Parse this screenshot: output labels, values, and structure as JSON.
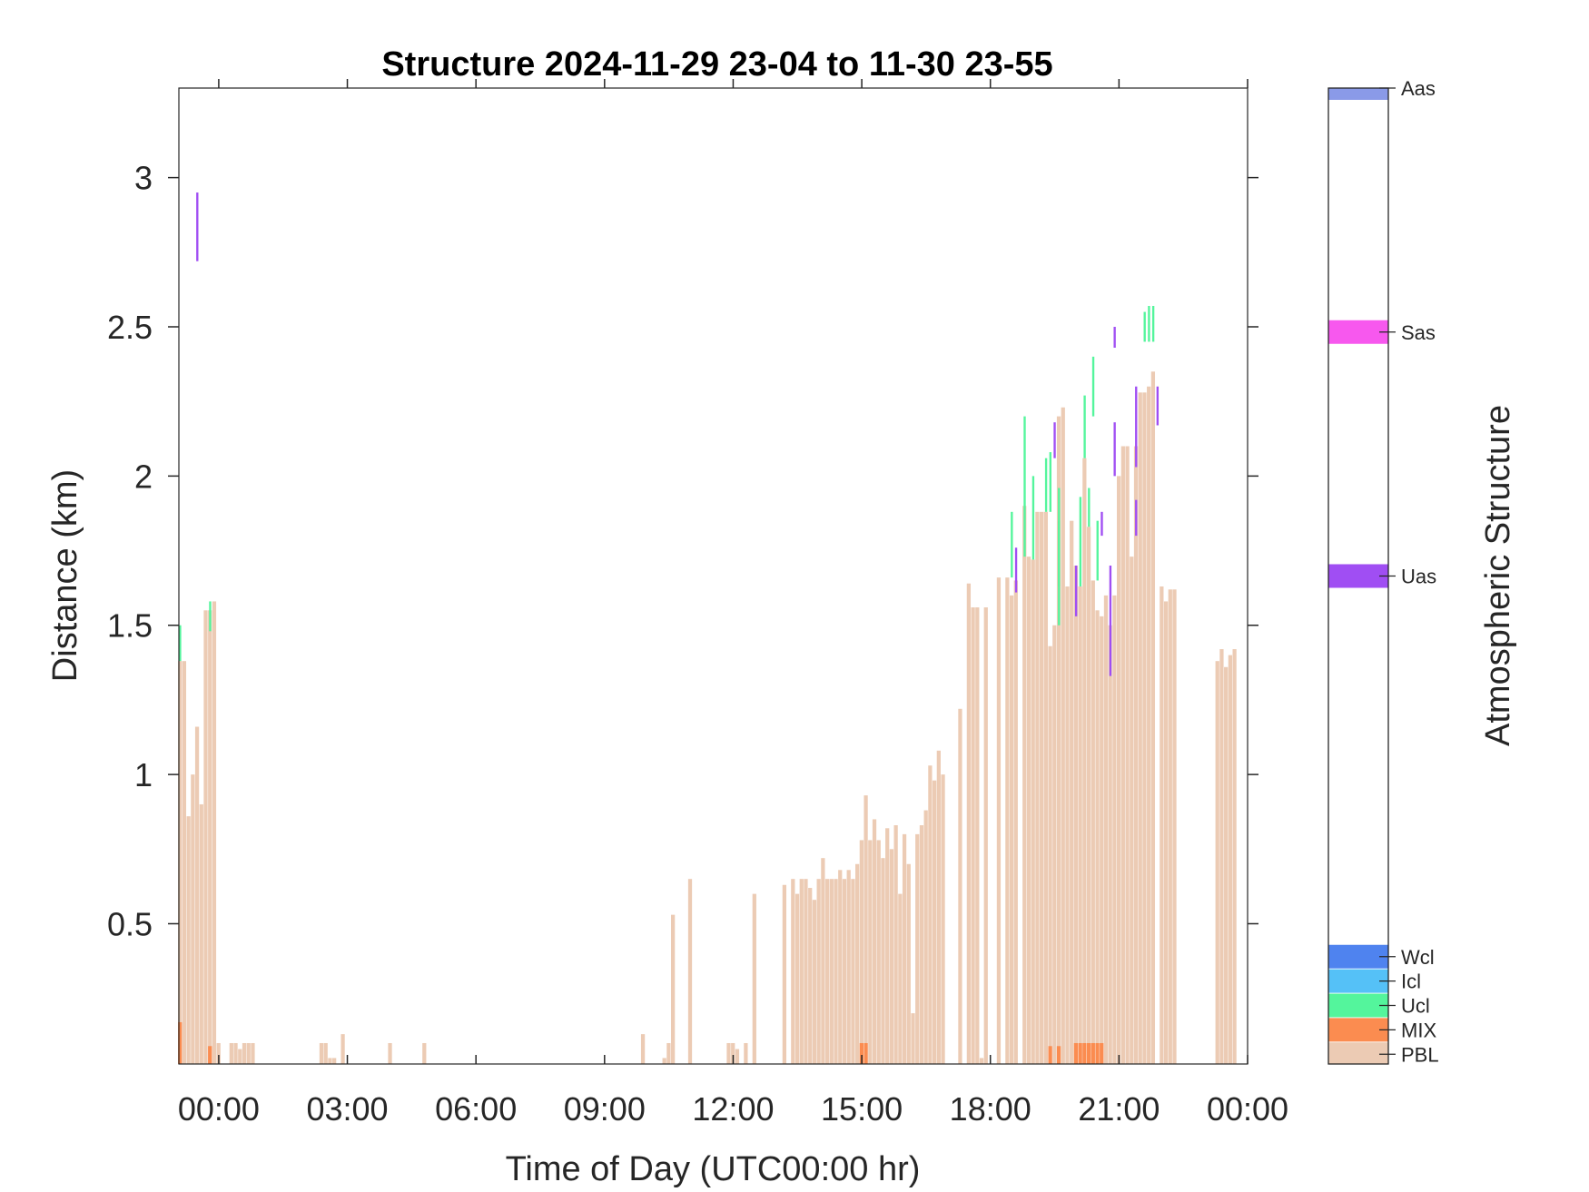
{
  "chart_data": {
    "type": "bar",
    "title": "Structure 2024-11-29 23-04 to 11-30 23-55",
    "xlabel": "Time of Day (UTC00:00 hr)",
    "ylabel": "Distance (km)",
    "colorbar_label": "Atmospheric Structure",
    "x_unit": "hours relative to 2024-11-30 00:00 UTC",
    "xlim": [
      -0.93,
      24.0
    ],
    "ylim": [
      0.03,
      3.3
    ],
    "x_ticks": [
      0,
      3,
      6,
      9,
      12,
      15,
      18,
      21,
      24
    ],
    "x_tick_labels": [
      "00:00",
      "03:00",
      "06:00",
      "09:00",
      "12:00",
      "15:00",
      "18:00",
      "21:00",
      "00:00"
    ],
    "y_ticks": [
      0.5,
      1,
      1.5,
      2,
      2.5,
      3
    ],
    "y_tick_labels": [
      "0.5",
      "1",
      "1.5",
      "2",
      "2.5",
      "3"
    ],
    "bar_width_hours": 0.1,
    "colors": {
      "PBL": "#eccbb4",
      "MIX": "#fb8c50",
      "Ucl": "#54f59c",
      "Icl": "#55c1f7",
      "Wcl": "#4f83ef",
      "Uas": "#a04ef3",
      "Sas": "#f758ee",
      "Aas": "#8a9ae8"
    },
    "legend": [
      {
        "name": "Aas",
        "color": "#8a9ae8"
      },
      {
        "name": "Sas",
        "color": "#f758ee"
      },
      {
        "name": "Uas",
        "color": "#a04ef3"
      },
      {
        "name": "Wcl",
        "color": "#4f83ef"
      },
      {
        "name": "Icl",
        "color": "#55c1f7"
      },
      {
        "name": "Ucl",
        "color": "#54f59c"
      },
      {
        "name": "MIX",
        "color": "#fb8c50"
      },
      {
        "name": "PBL",
        "color": "#eccbb4"
      }
    ],
    "series": [
      {
        "name": "PBL",
        "x": [
          -0.9,
          -0.8,
          -0.7,
          -0.6,
          -0.5,
          -0.4,
          -0.3,
          -0.2,
          -0.1,
          0.0,
          0.3,
          0.4,
          0.5,
          0.6,
          0.7,
          0.8,
          2.4,
          2.5,
          2.6,
          2.7,
          2.9,
          4.0,
          4.8,
          9.9,
          10.4,
          10.5,
          10.6,
          11.0,
          11.9,
          12.0,
          12.1,
          12.3,
          12.5,
          13.2,
          13.4,
          13.5,
          13.6,
          13.7,
          13.8,
          13.9,
          14.0,
          14.1,
          14.2,
          14.3,
          14.4,
          14.5,
          14.6,
          14.7,
          14.8,
          14.9,
          15.0,
          15.1,
          15.2,
          15.3,
          15.4,
          15.5,
          15.6,
          15.7,
          15.8,
          15.9,
          16.0,
          16.1,
          16.2,
          16.3,
          16.4,
          16.5,
          16.6,
          16.7,
          16.8,
          16.9,
          17.3,
          17.5,
          17.6,
          17.7,
          17.8,
          17.9,
          18.2,
          18.4,
          18.5,
          18.6,
          18.8,
          18.9,
          19.0,
          19.1,
          19.2,
          19.3,
          19.4,
          19.5,
          19.6,
          19.7,
          19.8,
          19.9,
          20.0,
          20.1,
          20.2,
          20.3,
          20.4,
          20.5,
          20.6,
          20.7,
          20.8,
          20.9,
          21.0,
          21.1,
          21.2,
          21.3,
          21.4,
          21.5,
          21.6,
          21.7,
          21.8,
          22.0,
          22.1,
          22.2,
          22.3,
          23.3,
          23.4,
          23.5,
          23.6,
          23.7
        ],
        "values": [
          1.38,
          1.38,
          0.86,
          1.0,
          1.16,
          0.9,
          1.55,
          1.55,
          1.58,
          0.1,
          0.1,
          0.1,
          0.08,
          0.1,
          0.1,
          0.1,
          0.1,
          0.1,
          0.05,
          0.05,
          0.13,
          0.1,
          0.1,
          0.13,
          0.05,
          0.1,
          0.53,
          0.65,
          0.1,
          0.1,
          0.08,
          0.1,
          0.6,
          0.63,
          0.65,
          0.6,
          0.65,
          0.65,
          0.62,
          0.58,
          0.65,
          0.72,
          0.65,
          0.65,
          0.65,
          0.68,
          0.65,
          0.68,
          0.65,
          0.7,
          0.78,
          0.93,
          0.78,
          0.85,
          0.78,
          0.72,
          0.82,
          0.75,
          0.83,
          0.6,
          0.8,
          0.7,
          0.2,
          0.8,
          0.83,
          0.88,
          1.03,
          0.98,
          1.08,
          1.0,
          1.22,
          1.64,
          1.56,
          1.56,
          0.05,
          1.56,
          1.66,
          1.66,
          1.6,
          1.65,
          1.9,
          1.73,
          1.72,
          1.88,
          1.88,
          1.88,
          1.43,
          1.5,
          2.2,
          2.23,
          1.63,
          1.85,
          1.7,
          1.63,
          2.06,
          1.83,
          1.65,
          1.55,
          1.53,
          1.6,
          1.5,
          1.6,
          2.0,
          2.1,
          2.1,
          1.73,
          2.1,
          2.28,
          2.28,
          2.3,
          2.35,
          1.63,
          1.58,
          1.62,
          1.62,
          1.38,
          1.42,
          1.36,
          1.4,
          1.42
        ]
      },
      {
        "name": "MIX",
        "x": [
          -0.9,
          -0.2,
          15.0,
          15.1,
          19.4,
          19.6,
          20.0,
          20.1,
          20.2,
          20.3,
          20.4,
          20.5,
          20.6
        ],
        "values": [
          0.17,
          0.09,
          0.1,
          0.1,
          0.09,
          0.09,
          0.1,
          0.1,
          0.1,
          0.1,
          0.1,
          0.1,
          0.1
        ],
        "base": 0.03
      },
      {
        "name": "Ucl",
        "ranges": [
          {
            "x": -0.9,
            "low": 1.38,
            "high": 1.5
          },
          {
            "x": -0.2,
            "low": 1.48,
            "high": 1.58
          },
          {
            "x": 18.5,
            "low": 1.66,
            "high": 1.88
          },
          {
            "x": 18.8,
            "low": 1.73,
            "high": 2.2
          },
          {
            "x": 19.0,
            "low": 1.72,
            "high": 2.0
          },
          {
            "x": 19.3,
            "low": 1.88,
            "high": 2.06
          },
          {
            "x": 19.4,
            "low": 1.88,
            "high": 2.08
          },
          {
            "x": 19.6,
            "low": 1.5,
            "high": 1.96
          },
          {
            "x": 19.6,
            "low": 1.63,
            "high": 1.85
          },
          {
            "x": 20.1,
            "low": 1.63,
            "high": 1.93
          },
          {
            "x": 20.2,
            "low": 2.06,
            "high": 2.27
          },
          {
            "x": 20.3,
            "low": 1.83,
            "high": 1.96
          },
          {
            "x": 20.4,
            "low": 2.2,
            "high": 2.4
          },
          {
            "x": 20.5,
            "low": 1.65,
            "high": 1.85
          },
          {
            "x": 21.6,
            "low": 2.45,
            "high": 2.55
          },
          {
            "x": 21.7,
            "low": 2.45,
            "high": 2.57
          },
          {
            "x": 21.8,
            "low": 2.45,
            "high": 2.57
          }
        ]
      },
      {
        "name": "Uas",
        "ranges": [
          {
            "x": -0.5,
            "low": 2.72,
            "high": 2.95
          },
          {
            "x": 18.6,
            "low": 1.61,
            "high": 1.76
          },
          {
            "x": 19.5,
            "low": 2.06,
            "high": 2.18
          },
          {
            "x": 20.0,
            "low": 1.53,
            "high": 1.7
          },
          {
            "x": 20.8,
            "low": 1.33,
            "high": 1.7
          },
          {
            "x": 20.6,
            "low": 1.8,
            "high": 1.88
          },
          {
            "x": 20.9,
            "low": 2.43,
            "high": 2.5
          },
          {
            "x": 20.9,
            "low": 2.0,
            "high": 2.18
          },
          {
            "x": 21.4,
            "low": 1.8,
            "high": 1.92
          },
          {
            "x": 21.4,
            "low": 2.03,
            "high": 2.3
          },
          {
            "x": 21.9,
            "low": 2.17,
            "high": 2.3
          }
        ]
      }
    ]
  }
}
